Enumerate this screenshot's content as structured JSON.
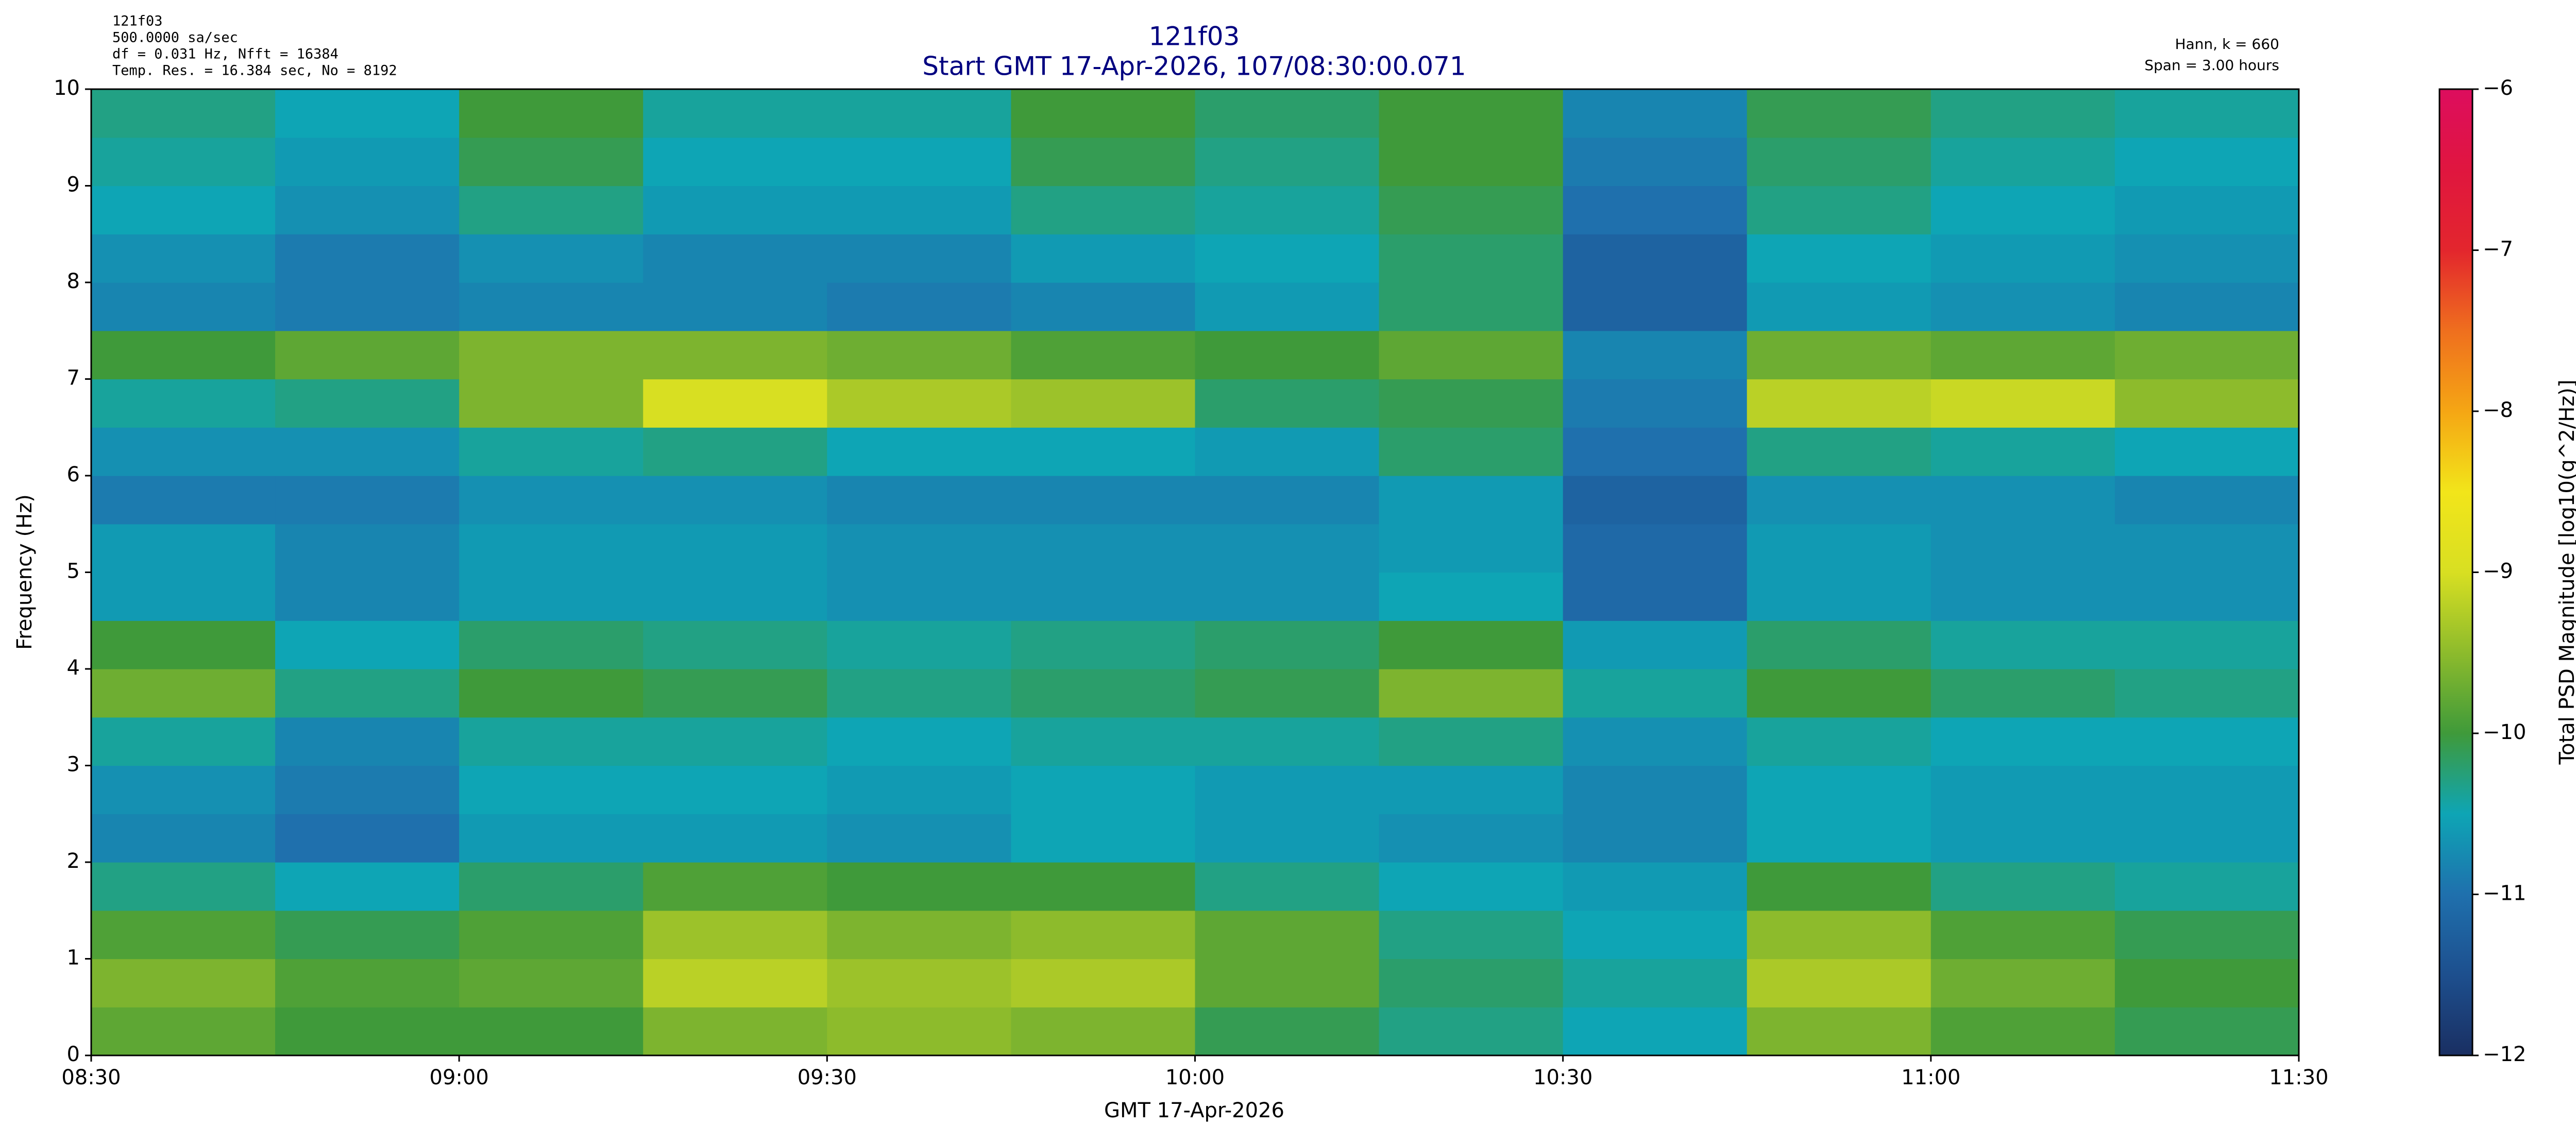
{
  "chart_data": {
    "type": "heatmap",
    "title": "121f03",
    "subtitle": "Start GMT 17-Apr-2026, 107/08:30:00.071",
    "annotations_left": [
      "121f03",
      "500.0000 sa/sec",
      "df = 0.031 Hz,  Nfft = 16384",
      "Temp. Res. = 16.384 sec, No = 8192"
    ],
    "annotations_right": [
      "Hann, k = 660",
      "Span = 3.00 hours"
    ],
    "xlabel": "GMT 17-Apr-2026",
    "ylabel": "Frequency (Hz)",
    "colorbar_label": "Total PSD Magnitude [log10(g^2/Hz)]",
    "xbins": [
      8.5,
      8.75,
      9,
      9.25,
      9.5,
      9.75,
      10,
      10.25,
      10.5,
      10.75,
      11,
      11.25,
      11.5
    ],
    "ybins": [
      0,
      0.5,
      1,
      1.5,
      2,
      2.5,
      3,
      3.5,
      4,
      4.5,
      5,
      5.5,
      6,
      6.5,
      7,
      7.5,
      8,
      8.5,
      9,
      9.5,
      10
    ],
    "z": [
      [
        -9.8,
        -10.0,
        -10.0,
        -9.6,
        -9.5,
        -9.6,
        -10.1,
        -10.3,
        -10.5,
        -9.6,
        -9.9,
        -10.1
      ],
      [
        -9.6,
        -9.9,
        -9.8,
        -9.2,
        -9.4,
        -9.3,
        -9.8,
        -10.2,
        -10.4,
        -9.3,
        -9.7,
        -10.0
      ],
      [
        -9.9,
        -10.1,
        -9.9,
        -9.4,
        -9.6,
        -9.5,
        -9.8,
        -10.3,
        -10.5,
        -9.5,
        -9.9,
        -10.1
      ],
      [
        -10.3,
        -10.5,
        -10.2,
        -9.9,
        -10.0,
        -10.0,
        -10.3,
        -10.5,
        -10.6,
        -10.0,
        -10.3,
        -10.4
      ],
      [
        -10.8,
        -11.0,
        -10.6,
        -10.6,
        -10.7,
        -10.5,
        -10.6,
        -10.7,
        -10.8,
        -10.5,
        -10.6,
        -10.6
      ],
      [
        -10.7,
        -10.9,
        -10.5,
        -10.5,
        -10.6,
        -10.5,
        -10.6,
        -10.6,
        -10.8,
        -10.5,
        -10.6,
        -10.6
      ],
      [
        -10.4,
        -10.8,
        -10.4,
        -10.4,
        -10.5,
        -10.4,
        -10.4,
        -10.3,
        -10.7,
        -10.4,
        -10.5,
        -10.5
      ],
      [
        -9.7,
        -10.3,
        -10.0,
        -10.1,
        -10.3,
        -10.2,
        -10.1,
        -9.6,
        -10.4,
        -10.0,
        -10.2,
        -10.3
      ],
      [
        -10.0,
        -10.5,
        -10.2,
        -10.3,
        -10.4,
        -10.3,
        -10.2,
        -10.0,
        -10.6,
        -10.2,
        -10.4,
        -10.4
      ],
      [
        -10.6,
        -10.8,
        -10.6,
        -10.6,
        -10.7,
        -10.7,
        -10.7,
        -10.5,
        -11.1,
        -10.6,
        -10.7,
        -10.7
      ],
      [
        -10.6,
        -10.8,
        -10.6,
        -10.6,
        -10.7,
        -10.7,
        -10.7,
        -10.6,
        -11.1,
        -10.6,
        -10.7,
        -10.7
      ],
      [
        -10.9,
        -10.9,
        -10.7,
        -10.7,
        -10.8,
        -10.8,
        -10.8,
        -10.6,
        -11.2,
        -10.7,
        -10.7,
        -10.8
      ],
      [
        -10.7,
        -10.7,
        -10.4,
        -10.3,
        -10.5,
        -10.5,
        -10.6,
        -10.2,
        -11.0,
        -10.3,
        -10.4,
        -10.5
      ],
      [
        -10.4,
        -10.3,
        -9.6,
        -9.0,
        -9.3,
        -9.4,
        -10.2,
        -10.1,
        -10.9,
        -9.2,
        -9.1,
        -9.5
      ],
      [
        -10.0,
        -9.8,
        -9.6,
        -9.6,
        -9.7,
        -9.9,
        -10.0,
        -9.8,
        -10.8,
        -9.7,
        -9.8,
        -9.7
      ],
      [
        -10.8,
        -10.9,
        -10.8,
        -10.8,
        -10.9,
        -10.8,
        -10.6,
        -10.2,
        -11.2,
        -10.6,
        -10.7,
        -10.8
      ],
      [
        -10.7,
        -10.9,
        -10.7,
        -10.8,
        -10.8,
        -10.6,
        -10.5,
        -10.2,
        -11.2,
        -10.5,
        -10.6,
        -10.7
      ],
      [
        -10.5,
        -10.7,
        -10.3,
        -10.6,
        -10.6,
        -10.3,
        -10.4,
        -10.1,
        -11.0,
        -10.3,
        -10.5,
        -10.6
      ],
      [
        -10.4,
        -10.6,
        -10.1,
        -10.5,
        -10.5,
        -10.1,
        -10.3,
        -10.0,
        -10.9,
        -10.2,
        -10.4,
        -10.5
      ],
      [
        -10.3,
        -10.5,
        -10.0,
        -10.4,
        -10.4,
        -10.0,
        -10.2,
        -10.0,
        -10.8,
        -10.1,
        -10.3,
        -10.4
      ]
    ],
    "xlim": [
      8.5,
      11.5
    ],
    "xticks": [
      {
        "value": 8.5,
        "label": "08:30"
      },
      {
        "value": 9,
        "label": "09:00"
      },
      {
        "value": 9.5,
        "label": "09:30"
      },
      {
        "value": 10,
        "label": "10:00"
      },
      {
        "value": 10.5,
        "label": "10:30"
      },
      {
        "value": 11,
        "label": "11:00"
      },
      {
        "value": 11.5,
        "label": "11:30"
      }
    ],
    "ylim": [
      0,
      10
    ],
    "yticks": [
      0,
      1,
      2,
      3,
      4,
      5,
      6,
      7,
      8,
      9,
      10
    ],
    "clim": [
      -12,
      -6
    ],
    "cticks": [
      {
        "value": -12,
        "label": "−12"
      },
      {
        "value": -11,
        "label": "−11"
      },
      {
        "value": -10,
        "label": "−10"
      },
      {
        "value": -9,
        "label": "−9"
      },
      {
        "value": -8,
        "label": "−8"
      },
      {
        "value": -7,
        "label": "−7"
      },
      {
        "value": -6,
        "label": "−6"
      }
    ],
    "colors": [
      "#1a2f62",
      "#1d4f8e",
      "#1f70ad",
      "#0ea5b5",
      "#3f9a3a",
      "#8dbb2c",
      "#d8df22",
      "#f2e51a",
      "#f5a614",
      "#ef6f1e",
      "#e3262d",
      "#e0163f",
      "#dd0d5e"
    ]
  }
}
